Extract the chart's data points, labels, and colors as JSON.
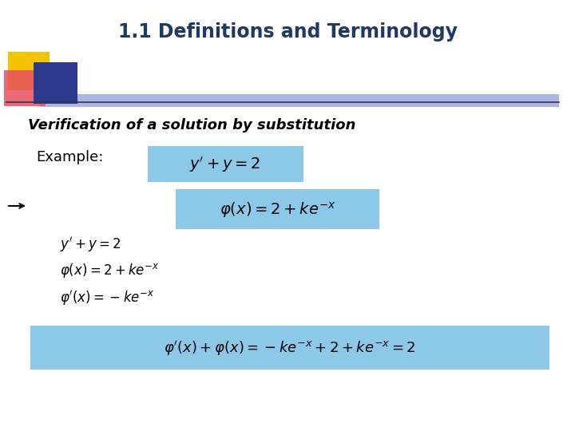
{
  "title": "1.1 Definitions and Terminology",
  "title_color": "#1F3864",
  "title_fontsize": 17,
  "bg_color": "#FFFFFF",
  "subtitle": "Verification of a solution by substitution",
  "subtitle_fontsize": 13,
  "example_label": "Example:",
  "example_fontsize": 13,
  "highlight_color": "#8CC8E8",
  "logo_colors": {
    "yellow": "#F5C400",
    "pink": "#E85060",
    "blue": "#2D3A8C",
    "blue2": "#6878C8"
  }
}
